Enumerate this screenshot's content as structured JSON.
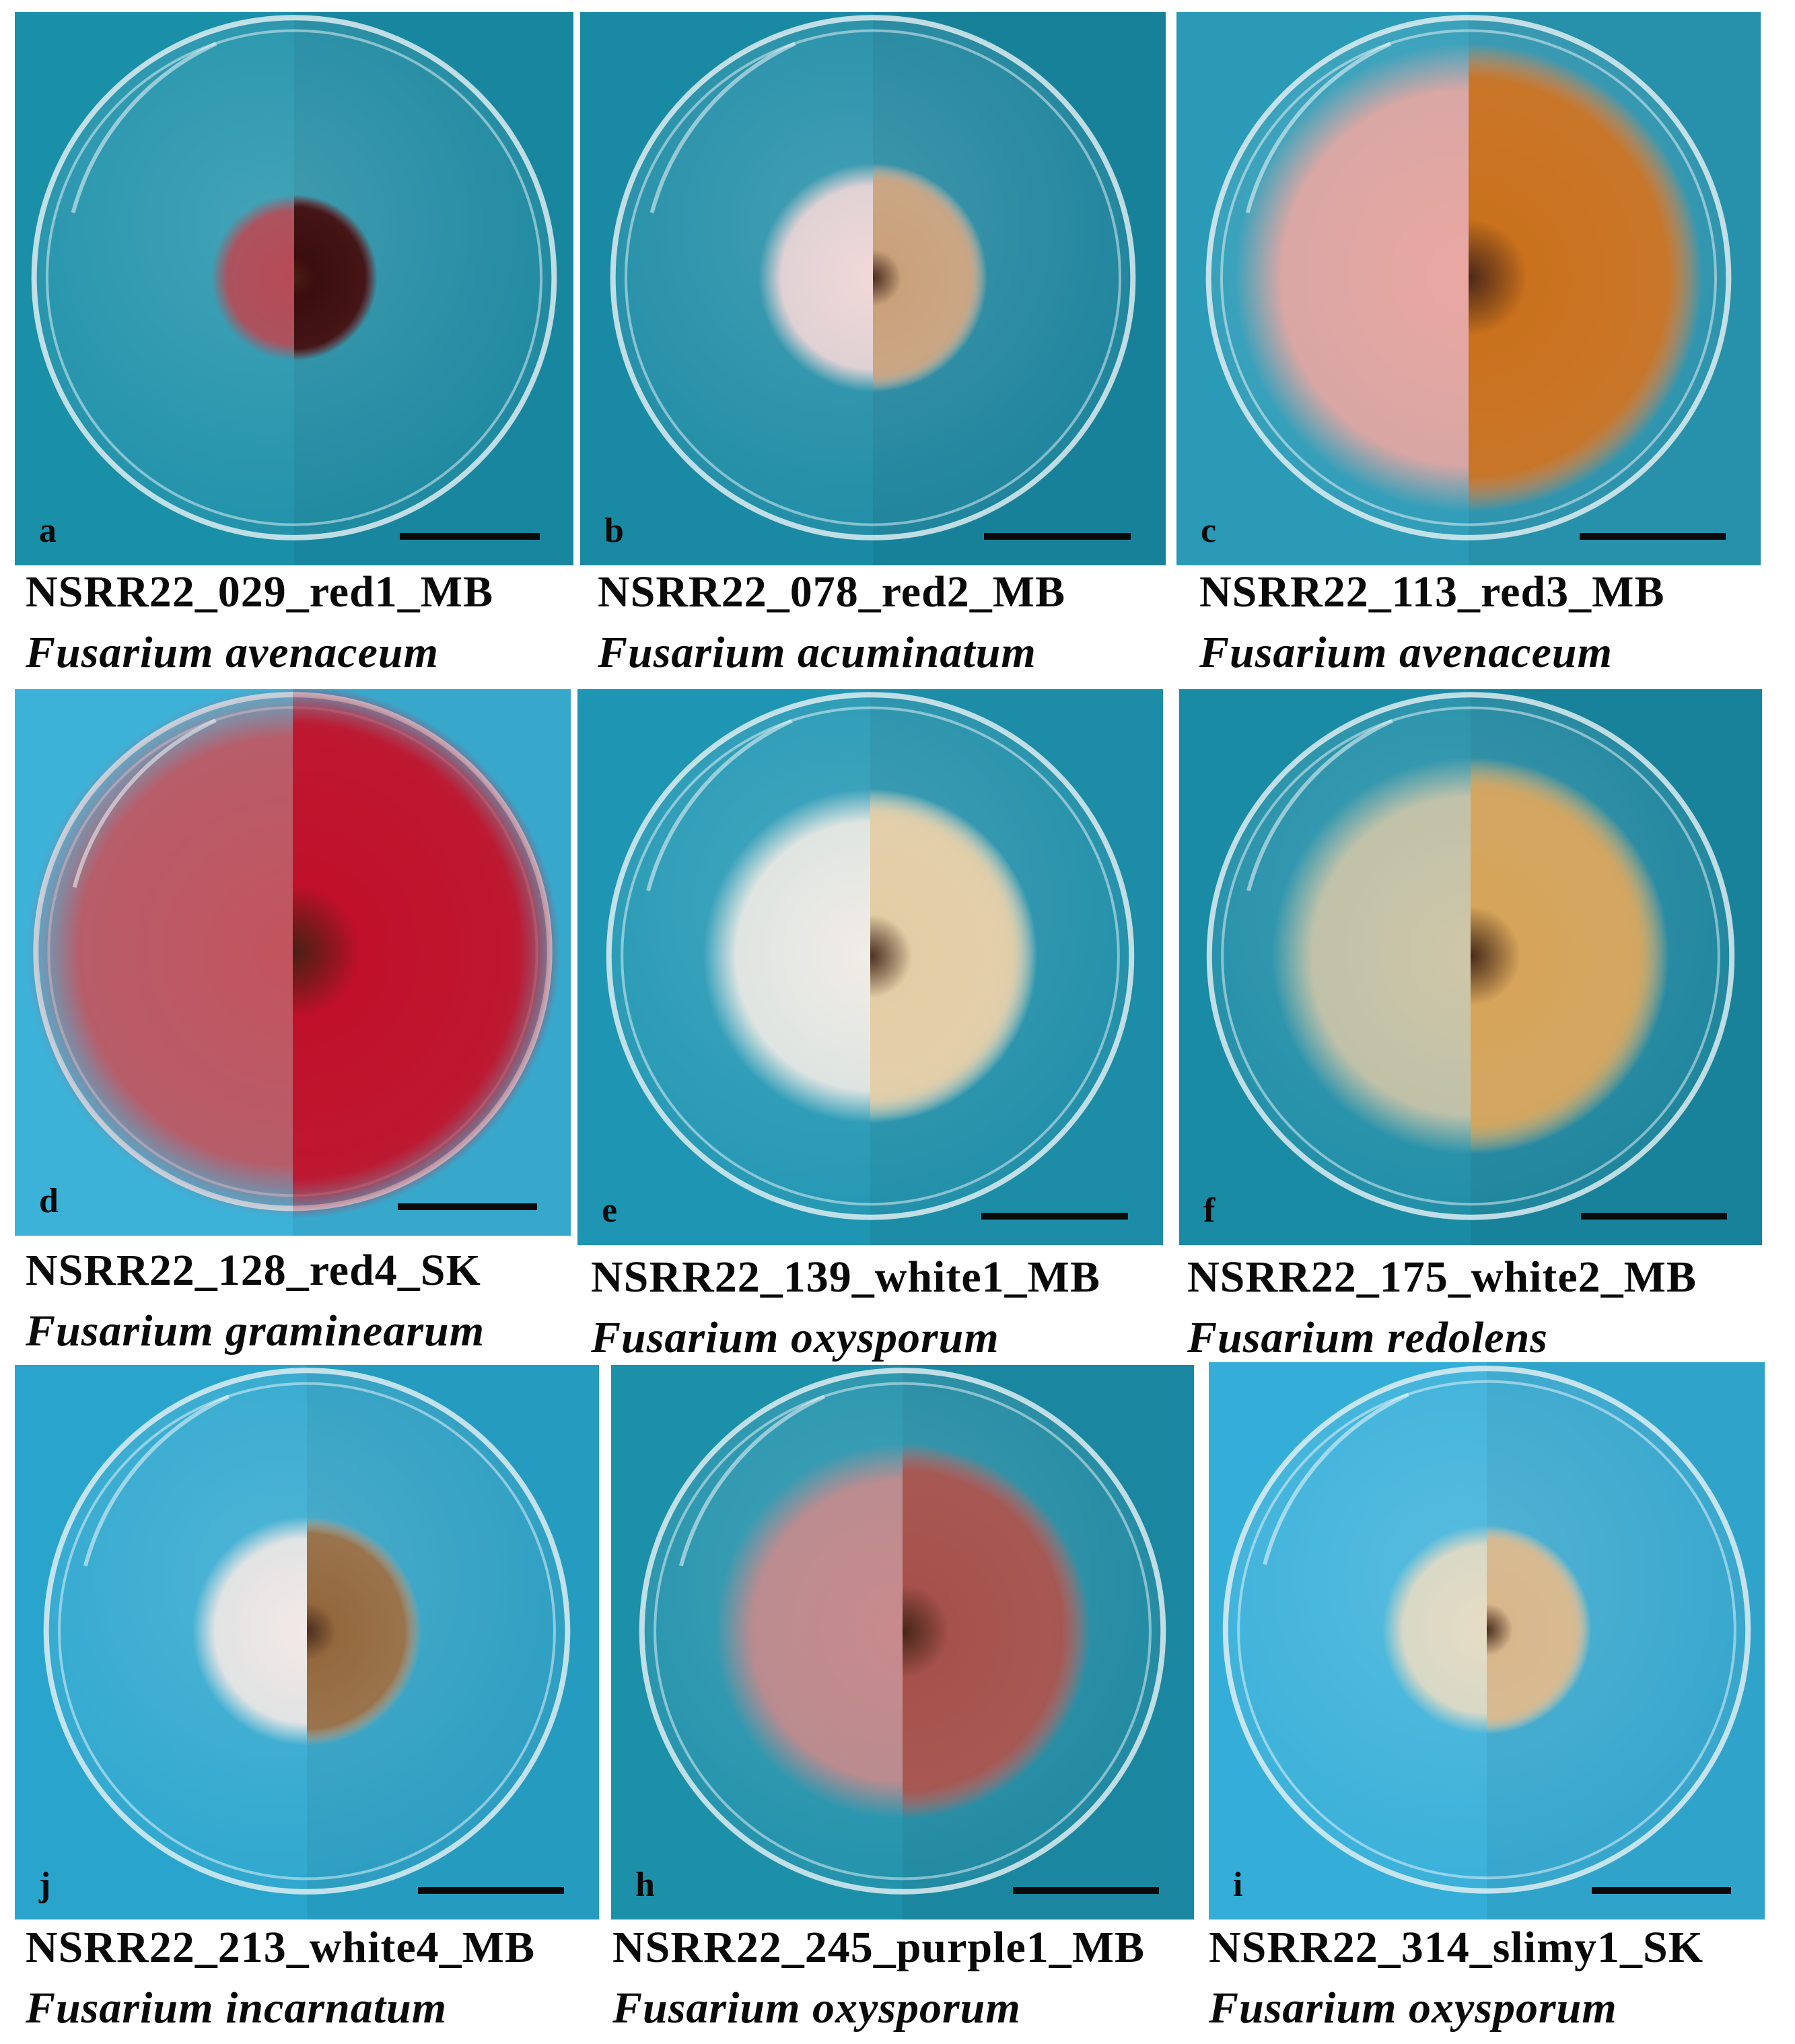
{
  "figure": {
    "panels": [
      {
        "letter": "a",
        "isolate": "NSRR22_029_red1_MB",
        "species": "Fusarium avenaceum",
        "bg": "#1a8fa8",
        "colony_color_top": "#b84a55",
        "colony_color_rev": "#3a0e0e",
        "colony_size": 0.16
      },
      {
        "letter": "b",
        "isolate": "NSRR22_078_red2_MB",
        "species": "Fusarium acuminatum",
        "bg": "#1a8aa4",
        "colony_color_top": "#f2d8d8",
        "colony_color_rev": "#c9a27c",
        "colony_size": 0.22
      },
      {
        "letter": "c",
        "isolate": "NSRR22_113_red3_MB",
        "species": "Fusarium avenaceum",
        "bg": "#2a9ab6",
        "colony_color_top": "#eaa7a1",
        "colony_color_rev": "#c9711c",
        "colony_size": 0.45
      },
      {
        "letter": "d",
        "isolate": "NSRR22_128_red4_SK",
        "species": "Fusarium graminearum",
        "bg": "#3cb2d9",
        "colony_color_top": "#c3535d",
        "colony_color_rev": "#c0102a",
        "colony_size": 0.52
      },
      {
        "letter": "e",
        "isolate": "NSRR22_139_white1_MB",
        "species": "Fusarium oxysporum",
        "bg": "#1e95b2",
        "colony_color_top": "#f1ece6",
        "colony_color_rev": "#e3cda5",
        "colony_size": 0.32
      },
      {
        "letter": "f",
        "isolate": "NSRR22_175_white2_MB",
        "species": "Fusarium redolens",
        "bg": "#1a8ba5",
        "colony_color_top": "#cfc6a8",
        "colony_color_rev": "#d6a45a",
        "colony_size": 0.38
      },
      {
        "letter": "j",
        "isolate": "NSRR22_213_white4_MB",
        "species": "Fusarium incarnatum",
        "bg": "#29a5cd",
        "colony_color_top": "#f3e9e6",
        "colony_color_rev": "#93683c",
        "colony_size": 0.22
      },
      {
        "letter": "h",
        "isolate": "NSRR22_245_purple1_MB",
        "species": "Fusarium oxysporum",
        "bg": "#1c8fa9",
        "colony_color_top": "#c98a8c",
        "colony_color_rev": "#a6524c",
        "colony_size": 0.36
      },
      {
        "letter": "i",
        "isolate": "NSRR22_314_slimy1_SK",
        "species": "Fusarium oxysporum",
        "bg": "#34aed8",
        "colony_color_top": "#e7dcc4",
        "colony_color_rev": "#d8b78c",
        "colony_size": 0.2
      }
    ]
  }
}
